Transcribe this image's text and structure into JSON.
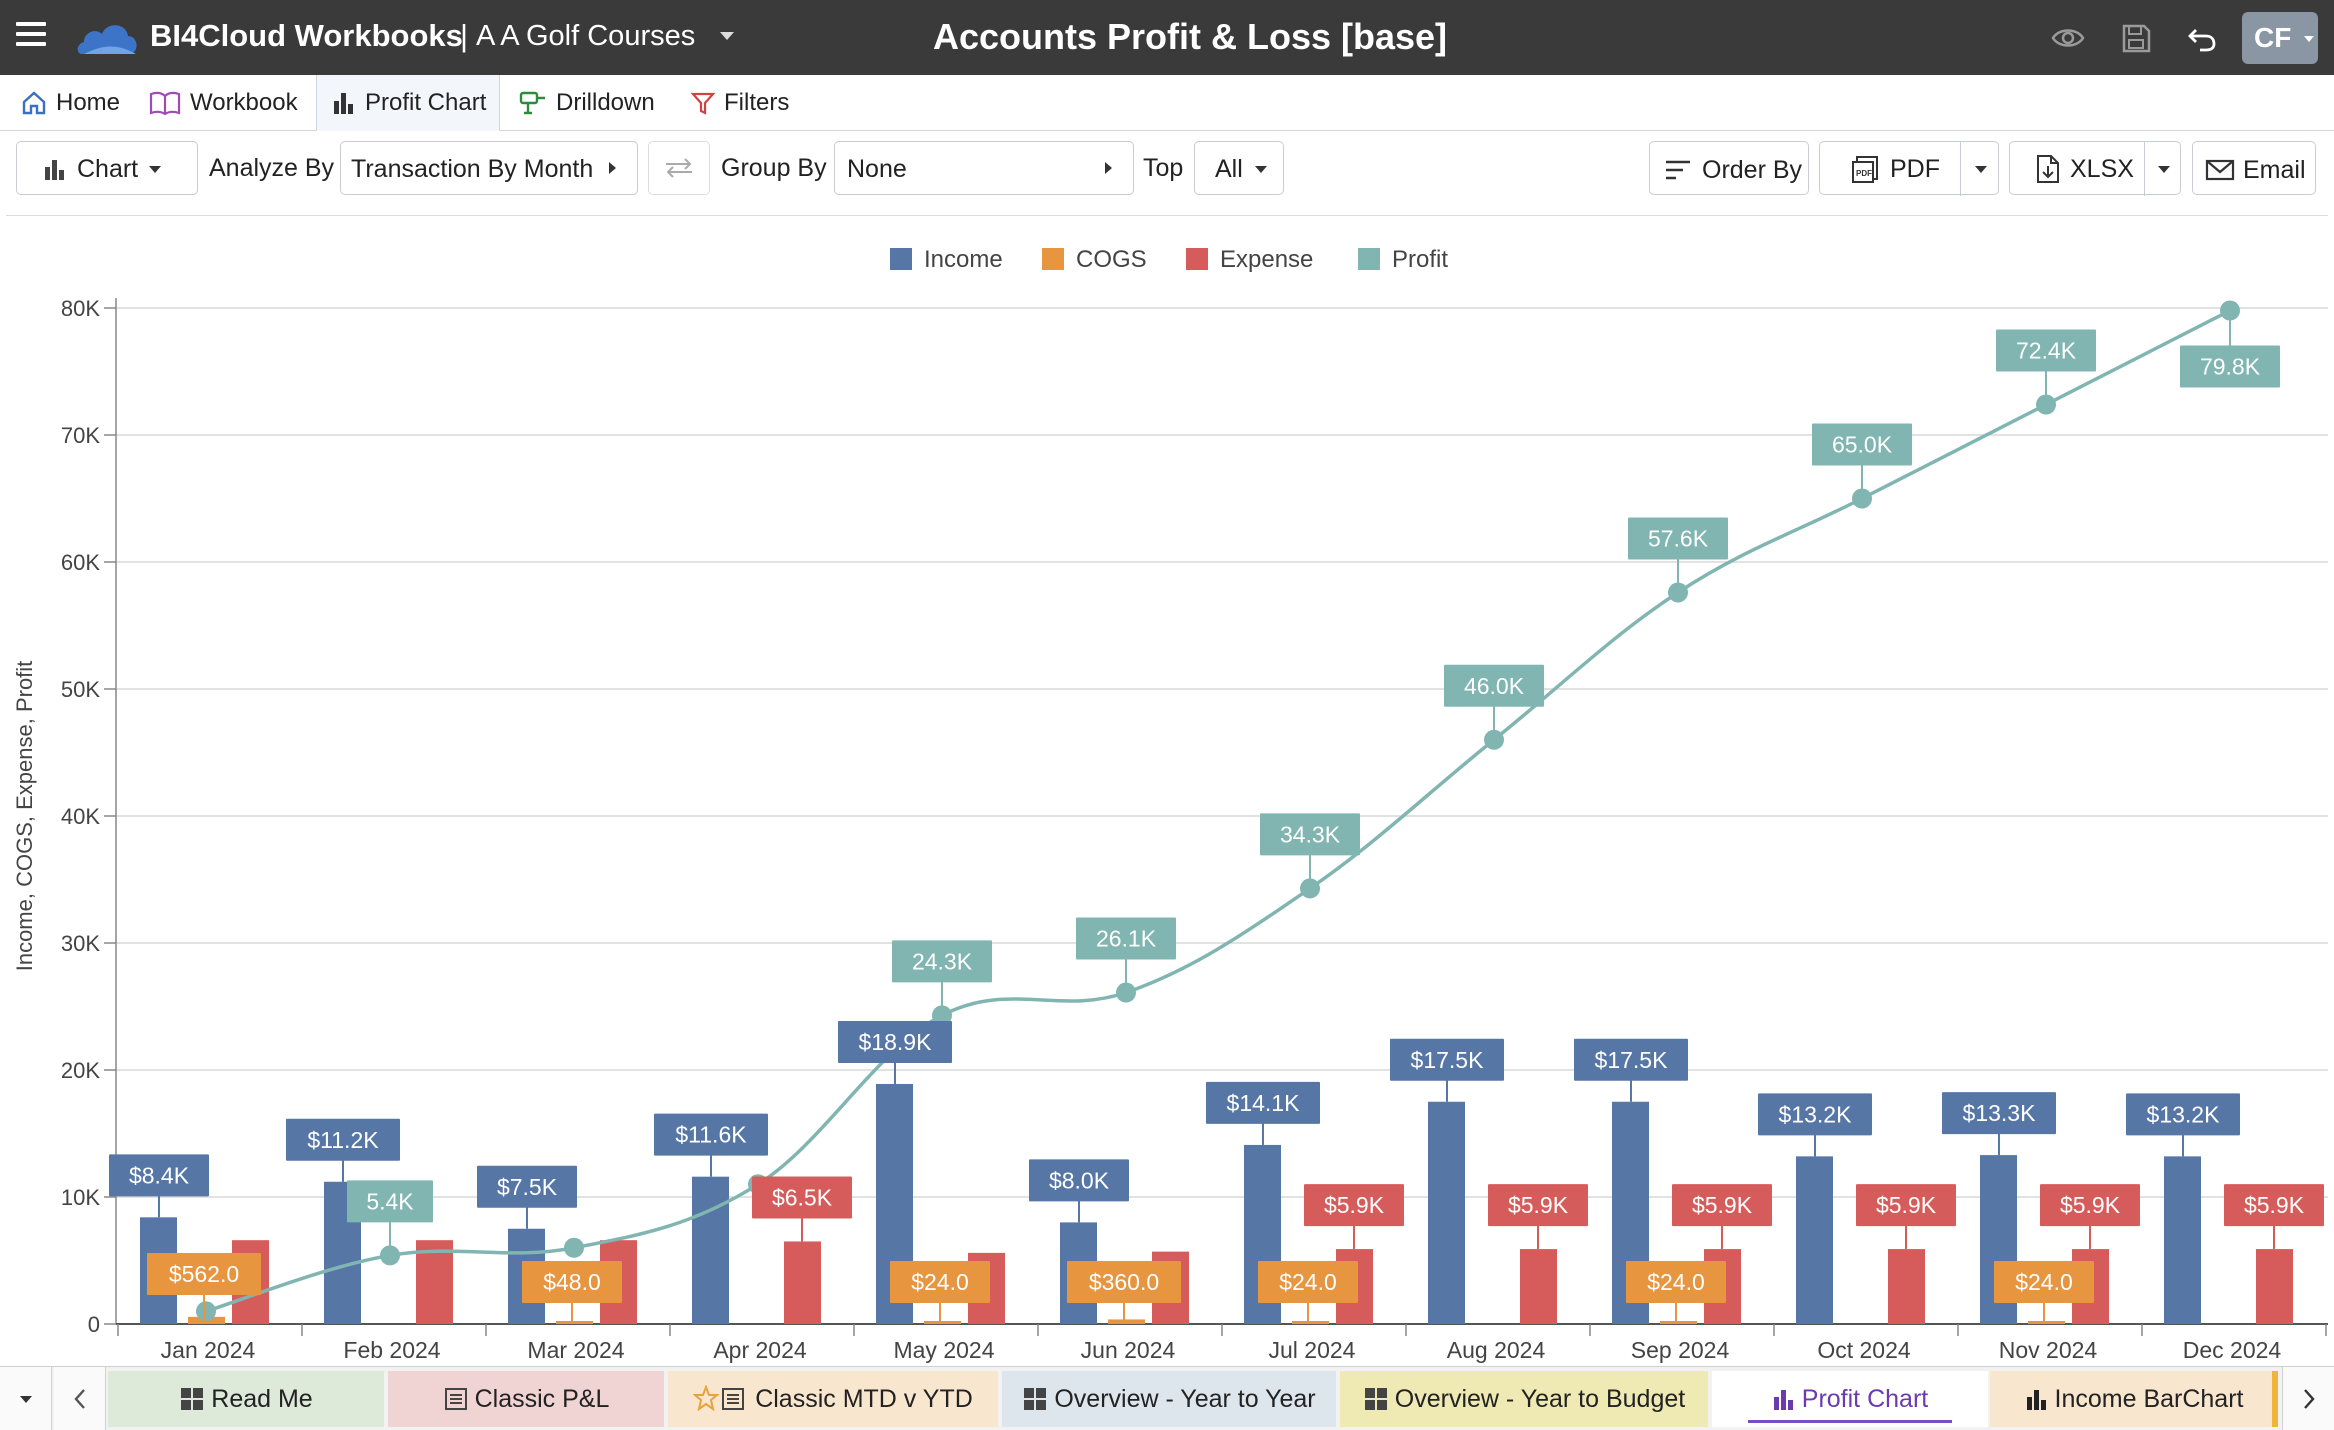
{
  "header": {
    "app_name": "BI4Cloud Workbooks",
    "separator": "|",
    "company": "A A Golf Courses",
    "document_title": "Accounts Profit & Loss [base]",
    "avatar_initials": "CF"
  },
  "nav": {
    "home": "Home",
    "workbook": "Workbook",
    "profit_chart": "Profit Chart",
    "drilldown": "Drilldown",
    "filters": "Filters"
  },
  "toolbar": {
    "chart_label": "Chart",
    "analyze_by_label": "Analyze By",
    "analyze_by_value": "Transaction By Month",
    "group_by_label": "Group By",
    "group_by_value": "None",
    "top_label": "Top",
    "top_value": "All",
    "order_by": "Order By",
    "pdf": "PDF",
    "xlsx": "XLSX",
    "email": "Email"
  },
  "bottom_tabs": [
    {
      "label": "Read Me",
      "icon": "dashboard-icon",
      "bg": "#dde9d9"
    },
    {
      "label": "Classic P&L",
      "icon": "list-icon",
      "bg": "#f0d3d3"
    },
    {
      "label": "Classic MTD v YTD",
      "icon": "star-list-icon",
      "bg": "#f9e6cf"
    },
    {
      "label": "Overview - Year to Year",
      "icon": "dashboard-icon",
      "bg": "#dde6ec"
    },
    {
      "label": "Overview - Year to Budget",
      "icon": "dashboard-icon",
      "bg": "#efeab3"
    },
    {
      "label": "Profit Chart",
      "icon": "bar-chart-icon",
      "bg": "#ffffff"
    },
    {
      "label": "Income BarChart",
      "icon": "bar-chart-icon",
      "bg": "#f9e6cf"
    }
  ],
  "chart_data": {
    "type": "bar",
    "title": "",
    "xlabel": "",
    "ylabel": "Income, COGS, Expense, Profit",
    "ylim": [
      0,
      80000
    ],
    "yticks": [
      0,
      10000,
      20000,
      30000,
      40000,
      50000,
      60000,
      70000,
      80000
    ],
    "ytick_labels": [
      "0",
      "10K",
      "20K",
      "30K",
      "40K",
      "50K",
      "60K",
      "70K",
      "80K"
    ],
    "legend_position": "top-center",
    "grid": true,
    "categories": [
      "Jan 2024",
      "Feb 2024",
      "Mar 2024",
      "Apr 2024",
      "May 2024",
      "Jun 2024",
      "Jul 2024",
      "Aug 2024",
      "Sep 2024",
      "Oct 2024",
      "Nov 2024",
      "Dec 2024"
    ],
    "series": [
      {
        "name": "Income",
        "type": "bar",
        "color": "#5677a6",
        "values": [
          8400,
          11200,
          7500,
          11600,
          18900,
          8000,
          14100,
          17500,
          17500,
          13200,
          13300,
          13200
        ],
        "labels": [
          "$8.4K",
          "$11.2K",
          "$7.5K",
          "$11.6K",
          "$18.9K",
          "$8.0K",
          "$14.1K",
          "$17.5K",
          "$17.5K",
          "$13.2K",
          "$13.3K",
          "$13.2K"
        ]
      },
      {
        "name": "COGS",
        "type": "bar",
        "color": "#e8953f",
        "values": [
          562,
          0,
          48,
          0,
          24,
          360,
          24,
          0,
          24,
          0,
          24,
          0
        ],
        "labels": [
          "$562.0",
          "",
          "$48.0",
          "",
          "$24.0",
          "$360.0",
          "$24.0",
          "",
          "$24.0",
          "",
          "$24.0",
          ""
        ]
      },
      {
        "name": "Expense",
        "type": "bar",
        "color": "#d65c5c",
        "values": [
          6600,
          6600,
          6600,
          6500,
          5600,
          5700,
          5900,
          5900,
          5900,
          5900,
          5900,
          5900
        ],
        "labels": [
          "",
          "",
          "",
          "$6.5K",
          "",
          "",
          "$5.9K",
          "$5.9K",
          "$5.9K",
          "$5.9K",
          "$5.9K",
          "$5.9K"
        ]
      },
      {
        "name": "Profit",
        "type": "line",
        "color": "#80b5b1",
        "values": [
          1000,
          5400,
          6000,
          11000,
          24300,
          26100,
          34300,
          46000,
          57600,
          65000,
          72400,
          79800
        ],
        "labels": [
          "",
          "5.4K",
          "",
          "",
          "24.3K",
          "26.1K",
          "34.3K",
          "46.0K",
          "57.6K",
          "65.0K",
          "72.4K",
          "79.8K"
        ]
      }
    ]
  }
}
